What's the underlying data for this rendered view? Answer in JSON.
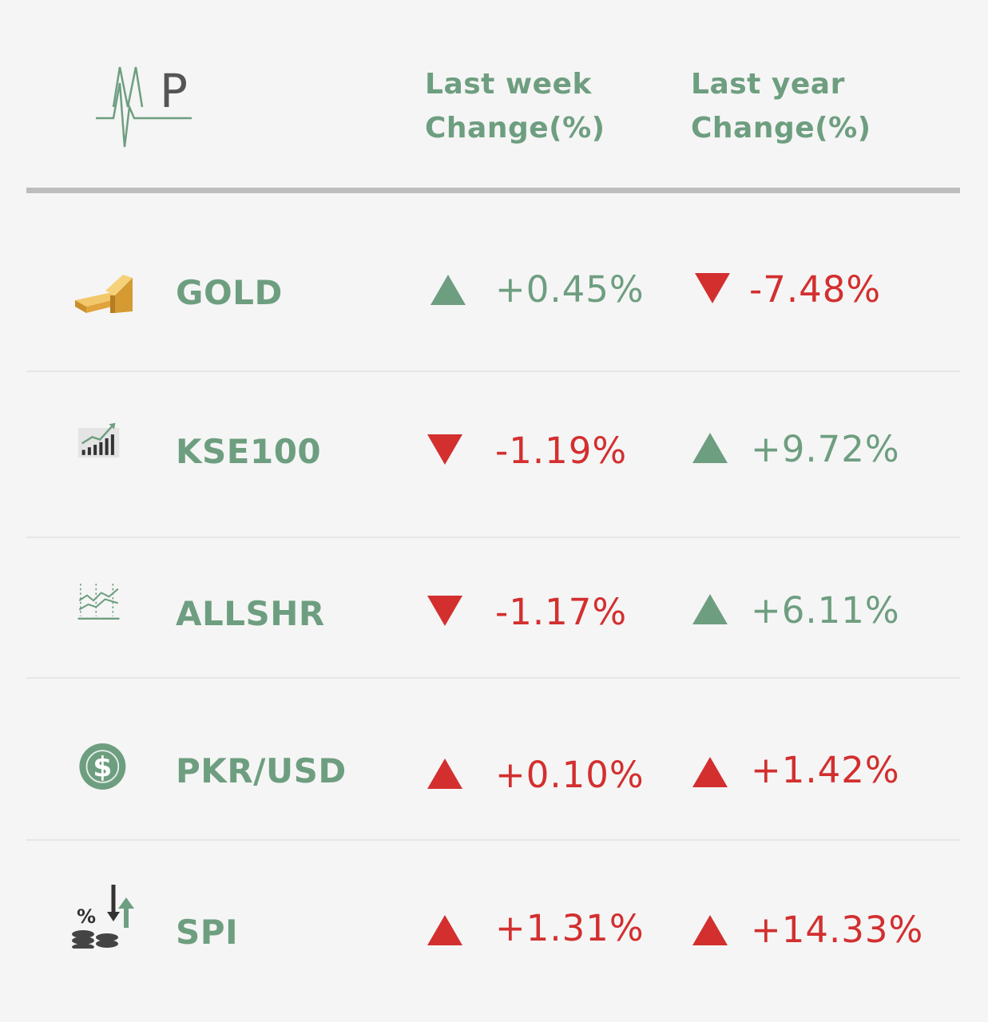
{
  "brand": {
    "logo_text": "MP"
  },
  "header": {
    "col_week_line1": "Last week",
    "col_week_line2": "Change(%)",
    "col_year_line1": "Last year",
    "col_year_line2": "Change(%)"
  },
  "colors": {
    "up_green": "#6e9e80",
    "down_red": "#d32f2f",
    "name_green": "#6e9e80"
  },
  "rows": [
    {
      "name": "GOLD",
      "icon": "gold-bars-icon",
      "week": {
        "value": "+0.45%",
        "arrow": "up",
        "color": "green"
      },
      "year": {
        "value": "-7.48%",
        "arrow": "down",
        "color": "red"
      }
    },
    {
      "name": "KSE100",
      "icon": "bar-chart-growth-icon",
      "week": {
        "value": "-1.19%",
        "arrow": "down",
        "color": "red"
      },
      "year": {
        "value": "+9.72%",
        "arrow": "up",
        "color": "green"
      }
    },
    {
      "name": "ALLSHR",
      "icon": "line-chart-icon",
      "week": {
        "value": "-1.17%",
        "arrow": "down",
        "color": "red"
      },
      "year": {
        "value": "+6.11%",
        "arrow": "up",
        "color": "green"
      }
    },
    {
      "name": "PKR/USD",
      "icon": "dollar-coin-icon",
      "week": {
        "value": "+0.10%",
        "arrow": "up",
        "color": "red"
      },
      "year": {
        "value": "+1.42%",
        "arrow": "up",
        "color": "red"
      }
    },
    {
      "name": "SPI",
      "icon": "percent-coins-arrows-icon",
      "week": {
        "value": "+1.31%",
        "arrow": "up",
        "color": "red"
      },
      "year": {
        "value": "+14.33%",
        "arrow": "up",
        "color": "red"
      }
    }
  ]
}
